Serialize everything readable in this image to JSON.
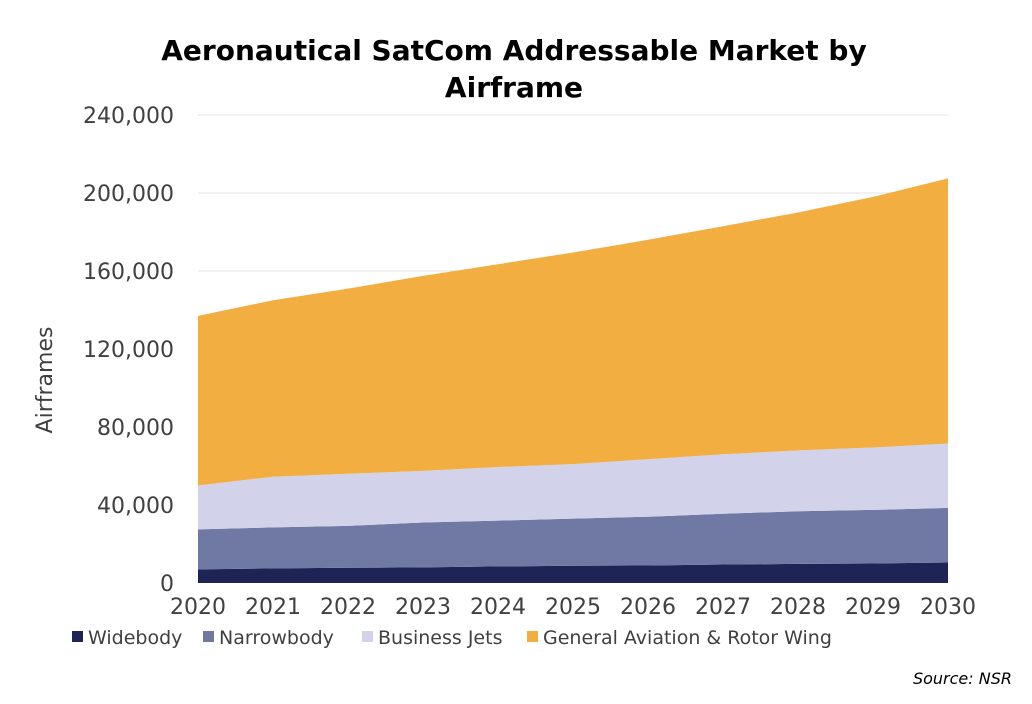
{
  "chart_data": {
    "type": "area",
    "stacked": true,
    "title": "Aeronautical SatCom Addressable Market by Airframe",
    "title_lines": [
      "Aeronautical SatCom Addressable Market by",
      "Airframe"
    ],
    "ylabel": "Airframes",
    "xlabel": "",
    "ylim": [
      0,
      240000
    ],
    "y_ticks": [
      "0",
      "40,000",
      "80,000",
      "120,000",
      "160,000",
      "200,000",
      "240,000"
    ],
    "y_tick_values": [
      0,
      40000,
      80000,
      120000,
      160000,
      200000,
      240000
    ],
    "x": [
      "2020",
      "2021",
      "2022",
      "2023",
      "2024",
      "2025",
      "2026",
      "2027",
      "2028",
      "2029",
      "2030"
    ],
    "grid": "horizontal",
    "legend_position": "bottom",
    "series": [
      {
        "name": "Widebody",
        "color": "#1f2456",
        "values": [
          7000,
          7500,
          7800,
          8000,
          8500,
          8800,
          9000,
          9500,
          9800,
          10000,
          10500
        ]
      },
      {
        "name": "Narrowbody",
        "color": "#7079a4",
        "values": [
          20500,
          21000,
          21500,
          23000,
          23500,
          24200,
          25000,
          26000,
          27000,
          27500,
          28000
        ]
      },
      {
        "name": "Business Jets",
        "color": "#d2d3ea",
        "values": [
          22500,
          26000,
          26700,
          26500,
          27500,
          28000,
          29500,
          30500,
          31200,
          32000,
          33000
        ]
      },
      {
        "name": "General Aviation & Rotor Wing",
        "color": "#f2ae41",
        "values": [
          87000,
          90500,
          95000,
          100000,
          104000,
          108500,
          112500,
          117000,
          122000,
          128500,
          136000
        ]
      }
    ]
  },
  "source": "Source: NSR"
}
